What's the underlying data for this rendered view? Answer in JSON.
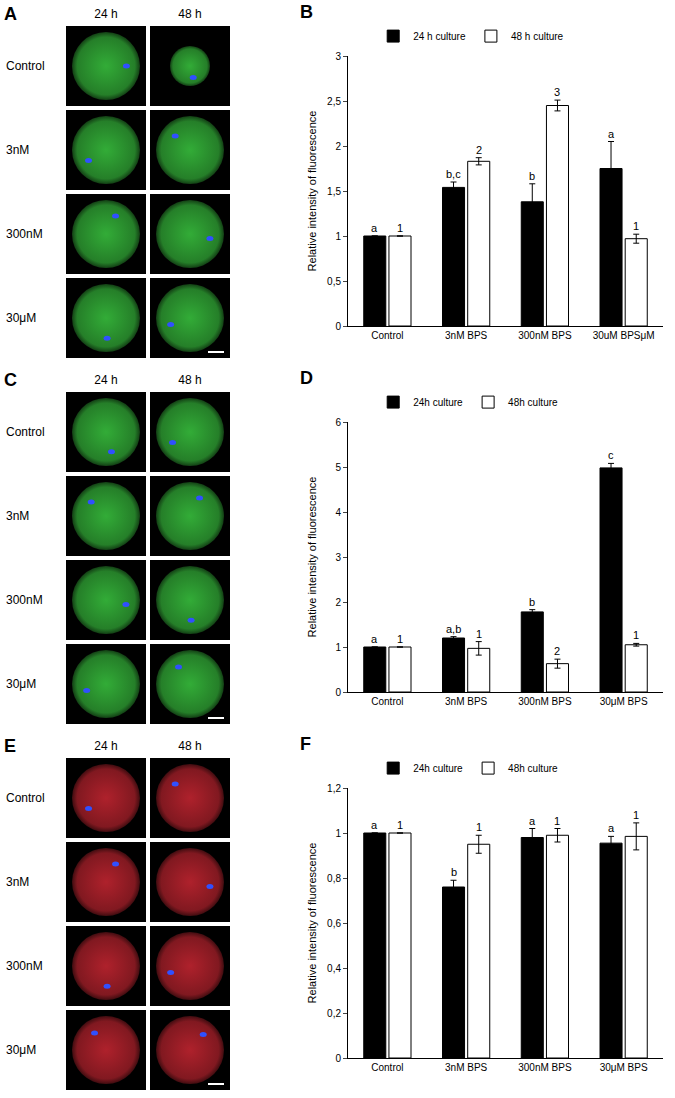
{
  "panels": [
    {
      "label": "A",
      "columns": [
        "24 h",
        "48 h"
      ],
      "rows": [
        "Control",
        "3nM",
        "300nM",
        "30μM"
      ],
      "color": "#35b53a"
    },
    {
      "label": "C",
      "columns": [
        "24 h",
        "48 h"
      ],
      "rows": [
        "Control",
        "3nM",
        "300nM",
        "30μM"
      ],
      "color": "#35b53a"
    },
    {
      "label": "E",
      "columns": [
        "24 h",
        "48 h"
      ],
      "rows": [
        "Control",
        "3nM",
        "300nM",
        "30μM"
      ],
      "color": "#b8232e"
    }
  ],
  "chart_data": [
    {
      "type": "bar",
      "title": "B",
      "y_label": "Relative intensity of fluorescence",
      "categories": [
        "Control",
        "3nM BPS",
        "300nM BPS",
        "30uM BPSμM"
      ],
      "series": [
        {
          "name": "24 h culture",
          "color": "#000000",
          "values": [
            1,
            1.54,
            1.38,
            1.75
          ],
          "error": [
            0,
            0.06,
            0.2,
            0.3
          ],
          "letters": [
            "a",
            "b,c",
            "b",
            "a"
          ]
        },
        {
          "name": "48 h culture",
          "color": "#ffffff",
          "values": [
            1,
            1.83,
            2.45,
            0.97
          ],
          "error": [
            0,
            0.04,
            0.06,
            0.05
          ],
          "letters": [
            "1",
            "2",
            "3",
            "1"
          ]
        }
      ],
      "ylim": [
        0,
        3
      ],
      "yticks": [
        0,
        {
          "value": 0.5,
          "label": "0,5"
        },
        1,
        {
          "value": 1.5,
          "label": "1,5"
        },
        2,
        {
          "value": 2.5,
          "label": "2,5"
        },
        3
      ],
      "grid": false,
      "legend": "top"
    },
    {
      "type": "bar",
      "title": "D",
      "y_label": "Relative intensity of fluorescence",
      "categories": [
        "Control",
        "3nM BPS",
        "300nM BPS",
        "30μM BPS"
      ],
      "series": [
        {
          "name": "24h culture",
          "color": "#000000",
          "values": [
            1,
            1.2,
            1.78,
            4.98
          ],
          "error": [
            0,
            0.03,
            0.05,
            0.1
          ],
          "letters": [
            "a",
            "a,b",
            "b",
            "c"
          ]
        },
        {
          "name": "48h culture",
          "color": "#ffffff",
          "values": [
            1,
            0.97,
            0.63,
            1.05
          ],
          "error": [
            0,
            0.15,
            0.1,
            0.03
          ],
          "letters": [
            "1",
            "1",
            "2",
            "1"
          ]
        }
      ],
      "ylim": [
        0,
        6
      ],
      "yticks": [
        0,
        1,
        2,
        3,
        4,
        5,
        6
      ],
      "grid": false,
      "legend": "top"
    },
    {
      "type": "bar",
      "title": "F",
      "y_label": "Relative intensity of fluorescence",
      "categories": [
        "Control",
        "3nM BPS",
        "300nM BPS",
        "30μM BPS"
      ],
      "series": [
        {
          "name": "24h culture",
          "color": "#000000",
          "values": [
            1,
            0.76,
            0.98,
            0.955
          ],
          "error": [
            0,
            0.03,
            0.04,
            0.03
          ],
          "letters": [
            "a",
            "b",
            "a",
            "a"
          ]
        },
        {
          "name": "48h culture",
          "color": "#ffffff",
          "values": [
            1,
            0.95,
            0.99,
            0.985
          ],
          "error": [
            0,
            0.04,
            0.03,
            0.06
          ],
          "letters": [
            "1",
            "1",
            "1",
            "1"
          ]
        }
      ],
      "ylim": [
        0,
        1.2
      ],
      "yticks": [
        0,
        {
          "value": 0.2,
          "label": "0,2"
        },
        {
          "value": 0.4,
          "label": "0,4"
        },
        {
          "value": 0.6,
          "label": "0,6"
        },
        {
          "value": 0.8,
          "label": "0,8"
        },
        1,
        {
          "value": 1.2,
          "label": "1,2"
        }
      ],
      "grid": false,
      "legend": "top"
    }
  ]
}
